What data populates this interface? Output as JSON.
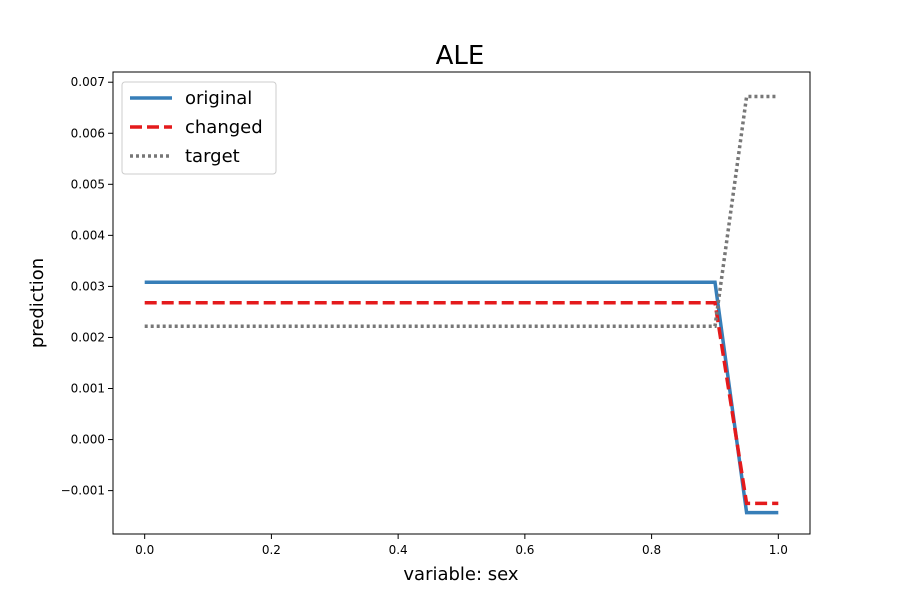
{
  "chart_data": {
    "type": "line",
    "title": "ALE",
    "xlabel": "variable: sex",
    "ylabel": "prediction",
    "xlim": [
      -0.05,
      1.05
    ],
    "ylim": [
      -0.00185,
      0.0072
    ],
    "x_ticks": [
      0.0,
      0.2,
      0.4,
      0.6,
      0.8,
      1.0
    ],
    "x_tick_labels": [
      "0.0",
      "0.2",
      "0.4",
      "0.6",
      "0.8",
      "1.0"
    ],
    "y_ticks": [
      -0.001,
      0.0,
      0.001,
      0.002,
      0.003,
      0.004,
      0.005,
      0.006,
      0.007
    ],
    "y_tick_labels": [
      "−0.001",
      "0.000",
      "0.001",
      "0.002",
      "0.003",
      "0.004",
      "0.005",
      "0.006",
      "0.007"
    ],
    "grid": false,
    "legend_position": "top-left",
    "series": [
      {
        "name": "original",
        "color": "#377eb8",
        "style": "solid",
        "x": [
          0.0,
          0.9,
          0.95,
          1.0
        ],
        "y": [
          0.00308,
          0.00308,
          -0.00143,
          -0.00143
        ]
      },
      {
        "name": "changed",
        "color": "#e41a1c",
        "style": "dashed",
        "x": [
          0.0,
          0.9,
          0.95,
          1.0
        ],
        "y": [
          0.00268,
          0.00268,
          -0.00125,
          -0.00125
        ]
      },
      {
        "name": "target",
        "color": "#777777",
        "style": "dotted",
        "x": [
          0.0,
          0.9,
          0.95,
          1.0
        ],
        "y": [
          0.00222,
          0.00222,
          0.00672,
          0.00672
        ]
      }
    ]
  }
}
